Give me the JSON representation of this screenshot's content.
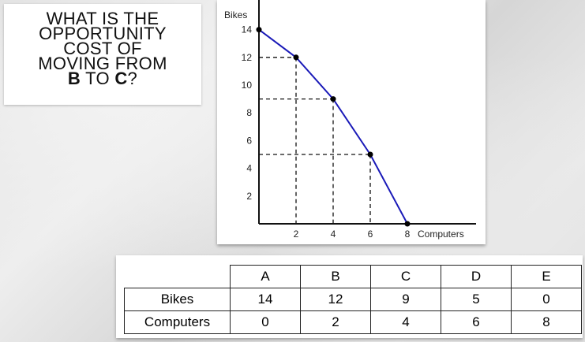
{
  "question": {
    "lines": [
      "WHAT IS THE",
      "OPPORTUNITY",
      "COST OF",
      "MOVING FROM"
    ],
    "last_line": {
      "from": "B",
      "to_word": "TO",
      "to": "C",
      "end": "?"
    }
  },
  "chart_data": {
    "type": "line",
    "xlabel": "Computers",
    "ylabel": "Bikes",
    "x_ticks": [
      "2",
      "4",
      "6",
      "8"
    ],
    "y_ticks": [
      "2",
      "4",
      "6",
      "8",
      "10",
      "12",
      "14"
    ],
    "xlim": [
      0,
      12
    ],
    "ylim": [
      0,
      16
    ],
    "line_color": "#1a1ab8",
    "points": [
      {
        "x": 0,
        "y": 14
      },
      {
        "x": 2,
        "y": 12
      },
      {
        "x": 4,
        "y": 9
      },
      {
        "x": 6,
        "y": 5
      },
      {
        "x": 8,
        "y": 0
      }
    ],
    "dashed_guides": true
  },
  "table": {
    "headers": [
      "",
      "A",
      "B",
      "C",
      "D",
      "E"
    ],
    "rows": [
      {
        "label": "Bikes",
        "values": [
          "14",
          "12",
          "9",
          "5",
          "0"
        ]
      },
      {
        "label": "Computers",
        "values": [
          "0",
          "2",
          "4",
          "6",
          "8"
        ]
      }
    ]
  }
}
